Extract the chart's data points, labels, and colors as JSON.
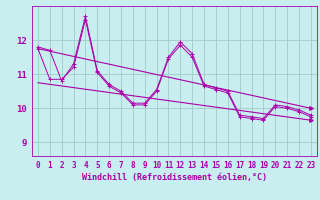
{
  "background_color": "#c8eef0",
  "grid_color": "#a0ccc8",
  "line_color": "#aa00aa",
  "xlim": [
    -0.5,
    23.5
  ],
  "ylim": [
    8.6,
    13.0
  ],
  "yticks": [
    9,
    10,
    11,
    12
  ],
  "xticks": [
    0,
    1,
    2,
    3,
    4,
    5,
    6,
    7,
    8,
    9,
    10,
    11,
    12,
    13,
    14,
    15,
    16,
    17,
    18,
    19,
    20,
    21,
    22,
    23
  ],
  "xlabel": "Windchill (Refroidissement éolien,°C)",
  "tick_fontsize": 5.5,
  "series1": [
    11.8,
    11.7,
    10.8,
    11.3,
    12.7,
    11.1,
    10.7,
    10.5,
    10.15,
    10.15,
    10.55,
    11.5,
    11.95,
    11.6,
    10.7,
    10.6,
    10.5,
    9.8,
    9.75,
    9.7,
    10.1,
    10.05,
    9.95,
    9.8
  ],
  "series2": [
    11.75,
    10.85,
    10.85,
    11.2,
    12.6,
    11.05,
    10.65,
    10.45,
    10.1,
    10.1,
    10.5,
    11.45,
    11.85,
    11.5,
    10.65,
    10.55,
    10.45,
    9.75,
    9.7,
    9.65,
    10.05,
    10.0,
    9.9,
    9.75
  ],
  "trend1_start_y": 11.75,
  "trend1_end_y": 10.0,
  "trend2_start_y": 10.75,
  "trend2_end_y": 9.65
}
